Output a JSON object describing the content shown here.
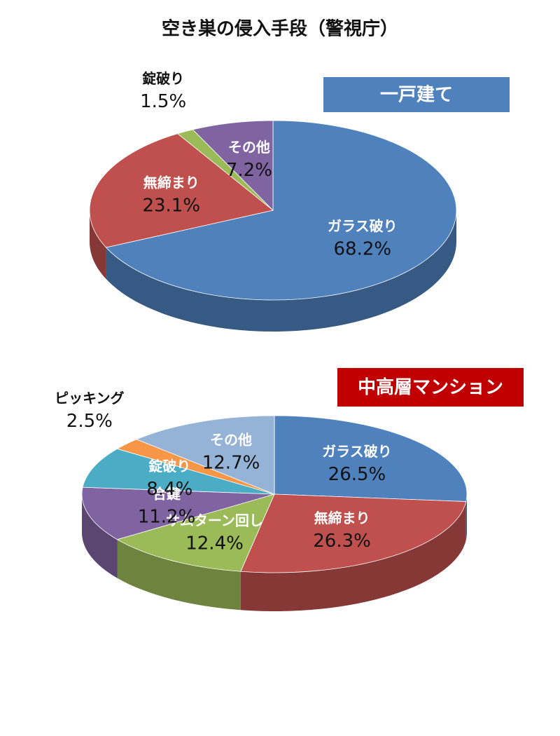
{
  "title": "空き巣の侵入手段（警視庁）",
  "chart_data": [
    {
      "type": "pie",
      "title": "一戸建て",
      "title_color": "#4f81bd",
      "categories": [
        "ガラス破り",
        "無締まり",
        "錠破り",
        "その他"
      ],
      "values": [
        68.2,
        23.1,
        1.5,
        7.2
      ],
      "value_labels": [
        "68.2%",
        "23.1%",
        "1.5%",
        "7.2%"
      ],
      "colors": [
        "#4f81bd",
        "#c0504d",
        "#9bbb59",
        "#8064a2"
      ]
    },
    {
      "type": "pie",
      "title": "中高層マンション",
      "title_color": "#c00000",
      "categories": [
        "ガラス破り",
        "無締まり",
        "サムターン回し",
        "合鍵",
        "錠破り",
        "ピッキング",
        "その他"
      ],
      "values": [
        26.5,
        26.3,
        12.4,
        11.2,
        8.4,
        2.5,
        12.7
      ],
      "value_labels": [
        "26.5%",
        "26.3%",
        "12.4%",
        "11.2%",
        "8.4%",
        "2.5%",
        "12.7%"
      ],
      "colors": [
        "#4f81bd",
        "#c0504d",
        "#9bbb59",
        "#8064a2",
        "#4bacc6",
        "#f79646",
        "#95b3d7"
      ]
    }
  ]
}
